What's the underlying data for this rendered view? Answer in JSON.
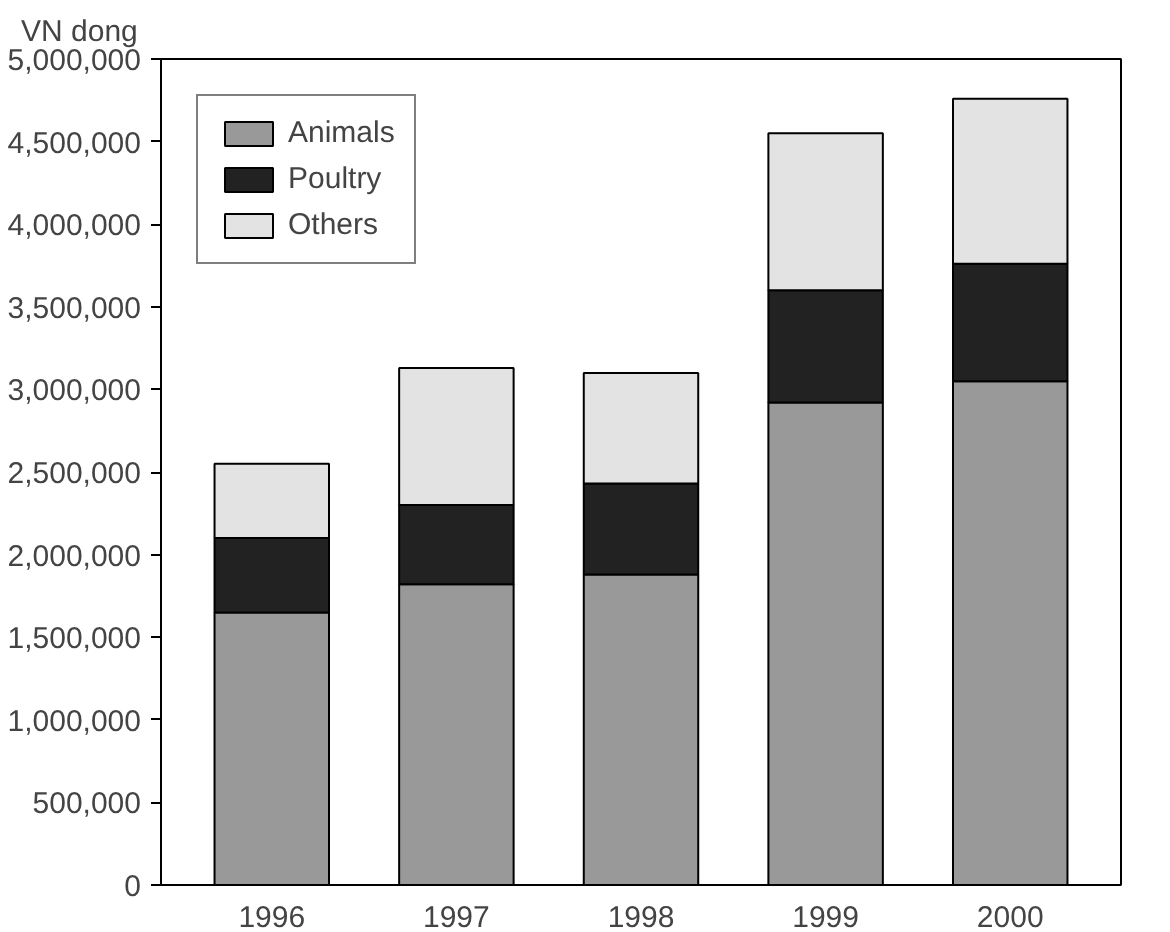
{
  "chart_data": {
    "type": "bar",
    "stacked": true,
    "ylabel": "VN dong",
    "categories": [
      "1996",
      "1997",
      "1998",
      "1999",
      "2000"
    ],
    "series": [
      {
        "name": "Animals",
        "color": "#999999",
        "values": [
          1650000,
          1820000,
          1880000,
          2920000,
          3050000
        ]
      },
      {
        "name": "Poultry",
        "color": "#222222",
        "values": [
          450000,
          480000,
          550000,
          680000,
          710000
        ]
      },
      {
        "name": "Others",
        "color": "#e3e3e3",
        "values": [
          450000,
          830000,
          670000,
          950000,
          1000000
        ]
      }
    ],
    "ylim": [
      0,
      5000000
    ],
    "yticks": [
      {
        "value": 0,
        "label": "0"
      },
      {
        "value": 500000,
        "label": "500,000"
      },
      {
        "value": 1000000,
        "label": "1,000,000"
      },
      {
        "value": 1500000,
        "label": "1,500,000"
      },
      {
        "value": 2000000,
        "label": "2,000,000"
      },
      {
        "value": 2500000,
        "label": "2,500,000"
      },
      {
        "value": 3000000,
        "label": "3,000,000"
      },
      {
        "value": 3500000,
        "label": "3,500,000"
      },
      {
        "value": 4000000,
        "label": "4,000,000"
      },
      {
        "value": 4500000,
        "label": "4,500,000"
      },
      {
        "value": 5000000,
        "label": "5,000,000"
      }
    ],
    "grid": false,
    "legend": "top left"
  }
}
